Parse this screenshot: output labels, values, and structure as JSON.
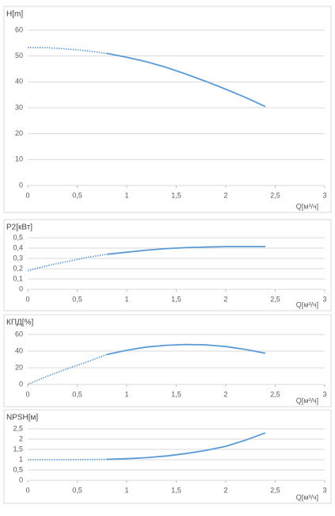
{
  "chart_data": [
    {
      "type": "line",
      "title": "H[m]",
      "x_label": "Q[м³/ч]",
      "color": "#5b9bd5",
      "grid": true,
      "xlim": [
        0,
        3
      ],
      "xticks": [
        0,
        {
          "value": 0.5,
          "label": "0,5"
        },
        1,
        {
          "value": 1.5,
          "label": "1,5"
        },
        2,
        {
          "value": 2.5,
          "label": "2,5"
        },
        3
      ],
      "ylim": [
        0,
        60
      ],
      "yticks": [
        0,
        10,
        20,
        30,
        40,
        50,
        60
      ],
      "series": [
        {
          "style": "dotted",
          "x": [
            0,
            0.2,
            0.4,
            0.6,
            0.8
          ],
          "values": [
            53.3,
            53.2,
            52.7,
            52.0,
            51.0
          ]
        },
        {
          "style": "solid",
          "x": [
            0.8,
            1.0,
            1.2,
            1.4,
            1.6,
            1.8,
            2.0,
            2.2,
            2.4
          ],
          "values": [
            51.0,
            49.5,
            47.8,
            45.6,
            43.0,
            40.2,
            37.2,
            34.0,
            30.5
          ]
        }
      ]
    },
    {
      "type": "line",
      "title": "P2[кВт]",
      "x_label": "Q[м³/ч]",
      "color": "#5b9bd5",
      "grid": true,
      "xlim": [
        0,
        3
      ],
      "xticks": [
        0,
        {
          "value": 0.5,
          "label": "0,5"
        },
        1,
        {
          "value": 1.5,
          "label": "1,5"
        },
        2,
        {
          "value": 2.5,
          "label": "2,5"
        },
        3
      ],
      "ylim": [
        0,
        0.5
      ],
      "yticks": [
        0,
        {
          "value": 0.1,
          "label": "0,1"
        },
        {
          "value": 0.2,
          "label": "0,2"
        },
        {
          "value": 0.3,
          "label": "0,3"
        },
        {
          "value": 0.4,
          "label": "0,4"
        },
        {
          "value": 0.5,
          "label": "0,5"
        }
      ],
      "series": [
        {
          "style": "dotted",
          "x": [
            0,
            0.2,
            0.4,
            0.6,
            0.8
          ],
          "values": [
            0.18,
            0.23,
            0.27,
            0.31,
            0.34
          ]
        },
        {
          "style": "solid",
          "x": [
            0.8,
            1.0,
            1.2,
            1.4,
            1.6,
            1.8,
            2.0,
            2.2,
            2.4
          ],
          "values": [
            0.34,
            0.36,
            0.38,
            0.395,
            0.405,
            0.41,
            0.415,
            0.415,
            0.415
          ]
        }
      ]
    },
    {
      "type": "line",
      "title": "КПД[%]",
      "x_label": "Q[м³/ч]",
      "color": "#5b9bd5",
      "grid": true,
      "xlim": [
        0,
        3
      ],
      "xticks": [
        0,
        {
          "value": 0.5,
          "label": "0,5"
        },
        1,
        {
          "value": 1.5,
          "label": "1,5"
        },
        2,
        {
          "value": 2.5,
          "label": "2,5"
        },
        3
      ],
      "ylim": [
        0,
        60
      ],
      "yticks": [
        0,
        20,
        40,
        60
      ],
      "series": [
        {
          "style": "dotted",
          "x": [
            0,
            0.2,
            0.4,
            0.6,
            0.8
          ],
          "values": [
            0,
            10,
            19,
            27,
            36
          ]
        },
        {
          "style": "solid",
          "x": [
            0.8,
            1.0,
            1.2,
            1.4,
            1.6,
            1.8,
            2.0,
            2.2,
            2.4
          ],
          "values": [
            36,
            41,
            45,
            47,
            48,
            47.5,
            45.5,
            42,
            37.5
          ]
        }
      ]
    },
    {
      "type": "line",
      "title": "NPSH[м]",
      "x_label": "Q[м³/ч]",
      "color": "#5b9bd5",
      "grid": true,
      "xlim": [
        0,
        3
      ],
      "xticks": [
        0,
        {
          "value": 0.5,
          "label": "0,5"
        },
        1,
        {
          "value": 1.5,
          "label": "1,5"
        },
        2,
        {
          "value": 2.5,
          "label": "2,5"
        },
        3
      ],
      "ylim": [
        0,
        2.5
      ],
      "yticks": [
        0,
        {
          "value": 0.5,
          "label": "0,5"
        },
        1,
        {
          "value": 1.5,
          "label": "1,5"
        },
        2,
        {
          "value": 2.5,
          "label": "2,5"
        }
      ],
      "series": [
        {
          "style": "dotted",
          "x": [
            0,
            0.4,
            0.8
          ],
          "values": [
            1.0,
            1.0,
            1.02
          ]
        },
        {
          "style": "solid",
          "x": [
            0.8,
            1.0,
            1.2,
            1.4,
            1.6,
            1.8,
            2.0,
            2.2,
            2.4
          ],
          "values": [
            1.02,
            1.05,
            1.1,
            1.18,
            1.3,
            1.45,
            1.65,
            1.95,
            2.3
          ]
        }
      ]
    }
  ]
}
